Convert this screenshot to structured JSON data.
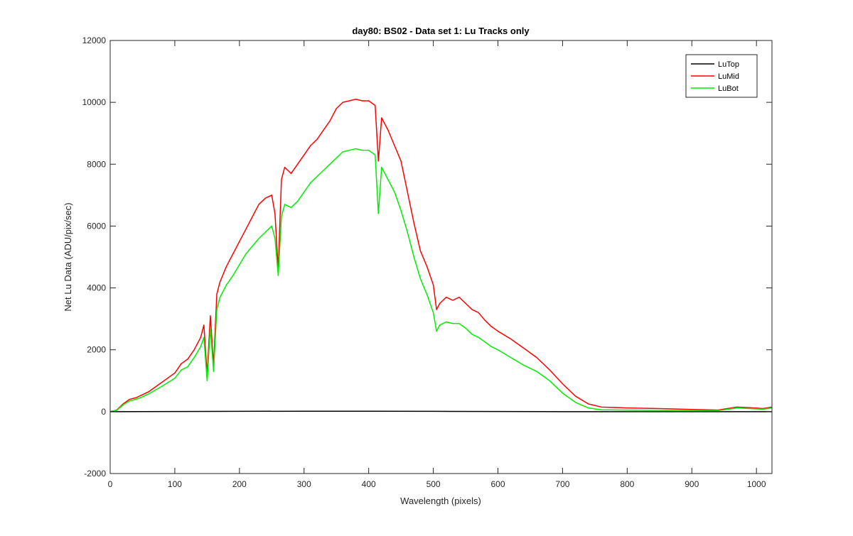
{
  "chart_data": {
    "type": "line",
    "title": "day80: BS02 - Data set 1: Lu Tracks only",
    "xlabel": "Wavelength (pixels)",
    "ylabel": "Net Lu Data (ADU/pix/sec)",
    "xlim": [
      0,
      1024
    ],
    "ylim": [
      -2000,
      12000
    ],
    "xticks": [
      0,
      100,
      200,
      300,
      400,
      500,
      600,
      700,
      800,
      900,
      1000
    ],
    "yticks": [
      -2000,
      0,
      2000,
      4000,
      6000,
      8000,
      10000,
      12000
    ],
    "grid": false,
    "legend_position": "top-right",
    "series": [
      {
        "name": "LuTop",
        "color": "#000000",
        "points": [
          [
            0,
            0
          ],
          [
            100,
            5
          ],
          [
            200,
            10
          ],
          [
            300,
            15
          ],
          [
            400,
            15
          ],
          [
            500,
            10
          ],
          [
            600,
            5
          ],
          [
            700,
            0
          ],
          [
            800,
            0
          ],
          [
            900,
            0
          ],
          [
            1000,
            0
          ],
          [
            1024,
            0
          ]
        ]
      },
      {
        "name": "LuMid",
        "color": "#ff0000",
        "points": [
          [
            0,
            0
          ],
          [
            10,
            50
          ],
          [
            20,
            250
          ],
          [
            30,
            400
          ],
          [
            40,
            450
          ],
          [
            50,
            550
          ],
          [
            60,
            650
          ],
          [
            70,
            800
          ],
          [
            80,
            950
          ],
          [
            90,
            1100
          ],
          [
            100,
            1250
          ],
          [
            110,
            1550
          ],
          [
            120,
            1700
          ],
          [
            130,
            2000
          ],
          [
            140,
            2400
          ],
          [
            145,
            2800
          ],
          [
            150,
            1200
          ],
          [
            155,
            3100
          ],
          [
            160,
            1500
          ],
          [
            165,
            3800
          ],
          [
            170,
            4200
          ],
          [
            180,
            4700
          ],
          [
            190,
            5100
          ],
          [
            200,
            5500
          ],
          [
            210,
            5900
          ],
          [
            220,
            6300
          ],
          [
            230,
            6700
          ],
          [
            240,
            6900
          ],
          [
            250,
            7000
          ],
          [
            255,
            6400
          ],
          [
            260,
            4600
          ],
          [
            265,
            7500
          ],
          [
            270,
            7900
          ],
          [
            280,
            7700
          ],
          [
            290,
            8000
          ],
          [
            300,
            8300
          ],
          [
            310,
            8600
          ],
          [
            320,
            8800
          ],
          [
            330,
            9100
          ],
          [
            340,
            9400
          ],
          [
            350,
            9800
          ],
          [
            360,
            10000
          ],
          [
            370,
            10050
          ],
          [
            380,
            10100
          ],
          [
            390,
            10050
          ],
          [
            400,
            10050
          ],
          [
            410,
            9900
          ],
          [
            415,
            8100
          ],
          [
            420,
            9500
          ],
          [
            430,
            9100
          ],
          [
            440,
            8600
          ],
          [
            450,
            8100
          ],
          [
            460,
            7100
          ],
          [
            470,
            6100
          ],
          [
            480,
            5200
          ],
          [
            490,
            4700
          ],
          [
            500,
            4100
          ],
          [
            505,
            3300
          ],
          [
            510,
            3500
          ],
          [
            520,
            3700
          ],
          [
            530,
            3600
          ],
          [
            540,
            3700
          ],
          [
            550,
            3500
          ],
          [
            560,
            3300
          ],
          [
            570,
            3200
          ],
          [
            580,
            2950
          ],
          [
            590,
            2750
          ],
          [
            600,
            2600
          ],
          [
            620,
            2350
          ],
          [
            640,
            2050
          ],
          [
            660,
            1750
          ],
          [
            680,
            1350
          ],
          [
            700,
            900
          ],
          [
            720,
            500
          ],
          [
            740,
            250
          ],
          [
            760,
            150
          ],
          [
            800,
            120
          ],
          [
            850,
            100
          ],
          [
            900,
            70
          ],
          [
            940,
            50
          ],
          [
            970,
            150
          ],
          [
            990,
            130
          ],
          [
            1010,
            100
          ],
          [
            1024,
            150
          ]
        ]
      },
      {
        "name": "LuBot",
        "color": "#00ee00",
        "points": [
          [
            0,
            0
          ],
          [
            10,
            40
          ],
          [
            20,
            220
          ],
          [
            30,
            350
          ],
          [
            40,
            400
          ],
          [
            50,
            480
          ],
          [
            60,
            580
          ],
          [
            70,
            700
          ],
          [
            80,
            820
          ],
          [
            90,
            950
          ],
          [
            100,
            1080
          ],
          [
            110,
            1350
          ],
          [
            120,
            1450
          ],
          [
            130,
            1750
          ],
          [
            140,
            2100
          ],
          [
            145,
            2400
          ],
          [
            150,
            1000
          ],
          [
            155,
            2700
          ],
          [
            160,
            1300
          ],
          [
            165,
            3300
          ],
          [
            170,
            3700
          ],
          [
            180,
            4100
          ],
          [
            190,
            4400
          ],
          [
            200,
            4750
          ],
          [
            210,
            5100
          ],
          [
            220,
            5350
          ],
          [
            230,
            5600
          ],
          [
            240,
            5800
          ],
          [
            250,
            6000
          ],
          [
            255,
            5600
          ],
          [
            260,
            4400
          ],
          [
            265,
            6300
          ],
          [
            270,
            6700
          ],
          [
            280,
            6600
          ],
          [
            290,
            6800
          ],
          [
            300,
            7100
          ],
          [
            310,
            7400
          ],
          [
            320,
            7600
          ],
          [
            330,
            7800
          ],
          [
            340,
            8000
          ],
          [
            350,
            8200
          ],
          [
            360,
            8400
          ],
          [
            370,
            8450
          ],
          [
            380,
            8500
          ],
          [
            390,
            8450
          ],
          [
            400,
            8450
          ],
          [
            410,
            8300
          ],
          [
            415,
            6400
          ],
          [
            420,
            7900
          ],
          [
            430,
            7500
          ],
          [
            440,
            7100
          ],
          [
            450,
            6500
          ],
          [
            460,
            5800
          ],
          [
            470,
            5000
          ],
          [
            480,
            4300
          ],
          [
            490,
            3800
          ],
          [
            500,
            3200
          ],
          [
            505,
            2600
          ],
          [
            510,
            2800
          ],
          [
            520,
            2900
          ],
          [
            530,
            2850
          ],
          [
            540,
            2850
          ],
          [
            550,
            2700
          ],
          [
            560,
            2500
          ],
          [
            570,
            2400
          ],
          [
            580,
            2250
          ],
          [
            590,
            2100
          ],
          [
            600,
            2000
          ],
          [
            620,
            1750
          ],
          [
            640,
            1500
          ],
          [
            660,
            1300
          ],
          [
            680,
            1000
          ],
          [
            700,
            600
          ],
          [
            720,
            300
          ],
          [
            740,
            120
          ],
          [
            760,
            60
          ],
          [
            800,
            50
          ],
          [
            850,
            40
          ],
          [
            900,
            30
          ],
          [
            940,
            30
          ],
          [
            970,
            120
          ],
          [
            990,
            100
          ],
          [
            1010,
            80
          ],
          [
            1024,
            120
          ]
        ]
      }
    ]
  }
}
